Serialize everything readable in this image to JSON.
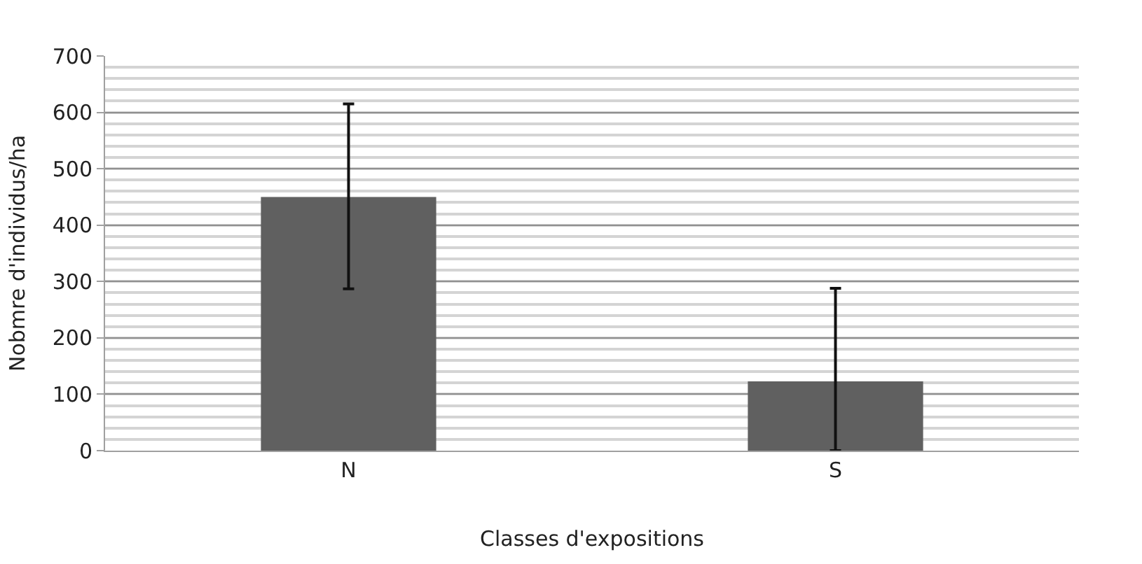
{
  "chart_data": {
    "type": "bar",
    "xlabel": "Classes d'expositions",
    "ylabel": "Nobmre d'individus/ha",
    "categories": [
      "N",
      "S"
    ],
    "values": [
      450,
      123
    ],
    "errors": [
      [
        287,
        615
      ],
      [
        0,
        288
      ]
    ],
    "color": "#606060",
    "ylim": [
      0,
      700
    ],
    "yticks": [
      0,
      100,
      200,
      300,
      400,
      500,
      600,
      700
    ],
    "grid": "y",
    "legend": false
  }
}
